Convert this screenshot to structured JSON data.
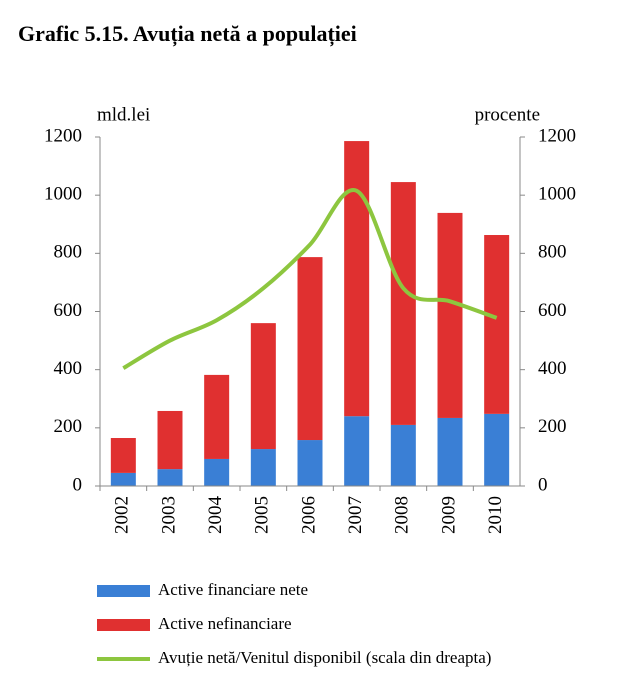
{
  "chart_data": {
    "type": "bar",
    "stacked": true,
    "title": "Grafic 5.15. Avuția netă a populației",
    "y_label": "mld.lei",
    "y2_label": "procente",
    "categories": [
      "2002",
      "2003",
      "2004",
      "2005",
      "2006",
      "2007",
      "2008",
      "2009",
      "2010"
    ],
    "series": [
      {
        "name": "Active financiare nete",
        "color": "#3a7fd5",
        "type": "bar",
        "values": [
          45,
          58,
          93,
          127,
          158,
          240,
          210,
          234,
          248
        ]
      },
      {
        "name": "Active nefinanciare",
        "color": "#e03030",
        "type": "bar",
        "values": [
          120,
          200,
          289,
          433,
          629,
          946,
          835,
          705,
          615
        ]
      },
      {
        "name": "Avuție netă/Venitul disponibil (scala din dreapta)",
        "color": "#8dc63f",
        "type": "line",
        "axis": "y2",
        "values": [
          405,
          500,
          570,
          680,
          830,
          1015,
          680,
          635,
          578
        ]
      }
    ],
    "ylim": [
      0,
      1200
    ],
    "yticks": [
      0,
      200,
      400,
      600,
      800,
      1000,
      1200
    ],
    "y2lim": [
      0,
      1200
    ],
    "y2ticks": [
      0,
      200,
      400,
      600,
      800,
      1000,
      1200
    ],
    "grid": false,
    "legend": "bottom"
  }
}
